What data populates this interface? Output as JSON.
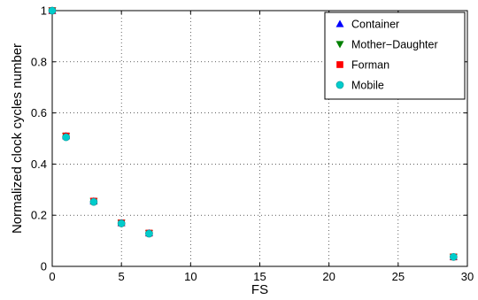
{
  "chart_data": {
    "type": "scatter",
    "title": "",
    "xlabel": "FS",
    "ylabel": "Normalized clock cycles number",
    "xlim": [
      0,
      30
    ],
    "ylim": [
      0,
      1
    ],
    "xticks": [
      0,
      5,
      10,
      15,
      20,
      25,
      30
    ],
    "yticks": [
      0,
      0.2,
      0.4,
      0.6,
      0.8,
      1
    ],
    "xtick_labels": [
      "0",
      "5",
      "10",
      "15",
      "20",
      "25",
      "30"
    ],
    "ytick_labels": [
      "0",
      "0.2",
      "0.4",
      "0.6",
      "0.8",
      "1"
    ],
    "grid": true,
    "legend_position": "top-right",
    "series": [
      {
        "name": "Container",
        "marker": "triangle-up",
        "color": "#0000ff",
        "x": [
          0,
          1,
          3,
          5,
          7,
          29
        ],
        "y": [
          1.0,
          0.51,
          0.255,
          0.17,
          0.13,
          0.037
        ]
      },
      {
        "name": "Mother−Daughter",
        "marker": "triangle-down",
        "color": "#008000",
        "x": [
          0,
          1,
          3,
          5,
          7,
          29
        ],
        "y": [
          1.0,
          0.51,
          0.255,
          0.17,
          0.13,
          0.037
        ]
      },
      {
        "name": "Forman",
        "marker": "square",
        "color": "#ff0000",
        "x": [
          0,
          1,
          3,
          5,
          7,
          29
        ],
        "y": [
          1.0,
          0.51,
          0.255,
          0.17,
          0.13,
          0.037
        ]
      },
      {
        "name": "Mobile",
        "marker": "circle",
        "color": "#00cccc",
        "x": [
          0,
          1,
          3,
          5,
          7,
          29
        ],
        "y": [
          1.0,
          0.505,
          0.252,
          0.168,
          0.128,
          0.037
        ]
      }
    ]
  }
}
